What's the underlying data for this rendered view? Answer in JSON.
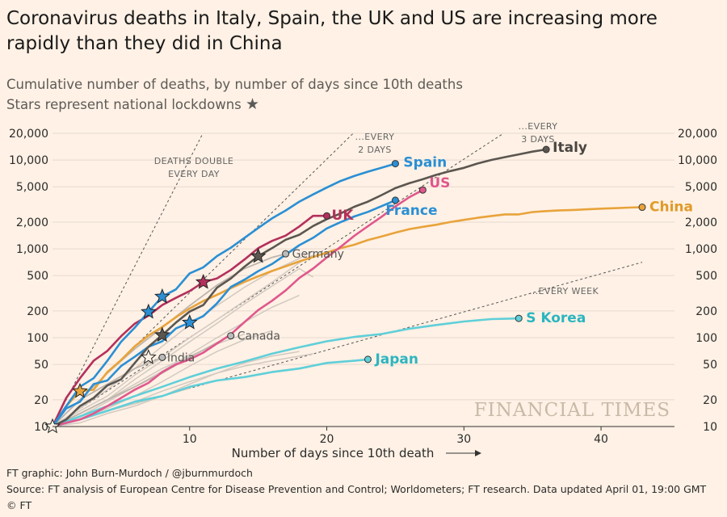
{
  "title": "Coronavirus deaths in Italy, Spain, the UK and US are increasing more rapidly than they did in China",
  "subtitle": "Cumulative number of deaths, by number of days since 10th deaths",
  "subtitle_line2": "Stars represent national lockdowns",
  "watermark": "FINANCIAL TIMES",
  "footer": {
    "credit": "FT graphic: John Burn-Murdoch / @jburnmurdoch",
    "source": "Source: FT analysis of European Centre for Disease Prevention and Control; Worldometers; FT research. Data updated April 01, 19:00 GMT",
    "copyright": "© FT"
  },
  "chart_data": {
    "type": "line",
    "y_scale": "log",
    "xlim": [
      0,
      43
    ],
    "ylim": [
      10,
      20000
    ],
    "xticks": [
      10,
      20,
      30,
      40
    ],
    "yticks": [
      10,
      20,
      50,
      100,
      200,
      500,
      1000,
      2000,
      5000,
      10000,
      20000
    ],
    "ytick_labels": [
      "10",
      "20",
      "50",
      "100",
      "200",
      "500",
      "1,000",
      "2,000",
      "5,000",
      "10,000",
      "20,000"
    ],
    "xlabel": "Number of days since 10th death",
    "guides": [
      {
        "label": [
          "DEATHS DOUBLE",
          "EVERY DAY"
        ],
        "doubling_days": 1
      },
      {
        "label": [
          "...EVERY",
          "2 DAYS"
        ],
        "doubling_days": 2
      },
      {
        "label": [
          "...EVERY",
          "3 DAYS"
        ],
        "doubling_days": 3
      },
      {
        "label": [
          "...EVERY WEEK"
        ],
        "doubling_days": 7
      }
    ],
    "series": [
      {
        "name": "Spain",
        "color": "#2a8fd4",
        "label_color": "#2a8fd4",
        "x": [
          0,
          1,
          2,
          3,
          4,
          5,
          6,
          7,
          8,
          9,
          10,
          11,
          12,
          13,
          14,
          15,
          16,
          17,
          18,
          19,
          20,
          21,
          22,
          23,
          24,
          25
        ],
        "y": [
          10,
          17,
          28,
          35,
          55,
          90,
          130,
          195,
          290,
          350,
          530,
          620,
          830,
          1030,
          1330,
          1720,
          2200,
          2700,
          3400,
          4100,
          4900,
          5800,
          6600,
          7400,
          8200,
          9100
        ],
        "stars": [
          7,
          8
        ]
      },
      {
        "name": "Italy",
        "color": "#5b5650",
        "label_color": "#4a4642",
        "x": [
          0,
          1,
          2,
          3,
          4,
          5,
          6,
          7,
          8,
          9,
          10,
          11,
          12,
          13,
          14,
          15,
          16,
          17,
          18,
          19,
          20,
          21,
          22,
          23,
          24,
          25,
          26,
          27,
          28,
          29,
          30,
          31,
          32,
          33,
          34,
          35,
          36
        ],
        "y": [
          10,
          12,
          17,
          21,
          29,
          34,
          52,
          79,
          107,
          148,
          197,
          233,
          366,
          463,
          631,
          827,
          1016,
          1266,
          1441,
          1809,
          2158,
          2503,
          2978,
          3405,
          4032,
          4825,
          5476,
          6077,
          6820,
          7503,
          8165,
          9134,
          10023,
          10779,
          11591,
          12428,
          13155
        ],
        "stars": [
          8,
          15
        ]
      },
      {
        "name": "UK",
        "color": "#b4305c",
        "label_color": "#b4305c",
        "x": [
          0,
          1,
          2,
          3,
          4,
          5,
          6,
          7,
          8,
          9,
          10,
          11,
          12,
          13,
          14,
          15,
          16,
          17,
          18,
          19,
          20
        ],
        "y": [
          10,
          21,
          35,
          55,
          71,
          104,
          144,
          177,
          233,
          281,
          335,
          422,
          465,
          578,
          759,
          1019,
          1228,
          1408,
          1789,
          2352,
          2352
        ],
        "stars": [
          11
        ]
      },
      {
        "name": "US",
        "color": "#e0578c",
        "label_color": "#e0578c",
        "x": [
          0,
          1,
          2,
          3,
          4,
          5,
          6,
          7,
          8,
          9,
          10,
          11,
          12,
          13,
          14,
          15,
          16,
          17,
          18,
          19,
          20,
          21,
          22,
          23,
          24,
          25,
          26,
          27
        ],
        "y": [
          10,
          11,
          12,
          14,
          17,
          21,
          26,
          31,
          41,
          50,
          57,
          68,
          86,
          109,
          150,
          205,
          260,
          340,
          470,
          600,
          800,
          1050,
          1400,
          1800,
          2300,
          3000,
          3800,
          4600
        ],
        "stars": []
      },
      {
        "name": "France",
        "color": "#2a8fd4",
        "label_color": "#2a8fd4",
        "x": [
          0,
          1,
          2,
          3,
          4,
          5,
          6,
          7,
          8,
          9,
          10,
          11,
          12,
          13,
          14,
          15,
          16,
          17,
          18,
          19,
          20,
          21,
          22,
          23,
          24,
          25
        ],
        "y": [
          10,
          16,
          19,
          30,
          33,
          48,
          61,
          79,
          91,
          127,
          148,
          175,
          244,
          372,
          450,
          562,
          674,
          860,
          1100,
          1331,
          1696,
          1995,
          2314,
          2606,
          3024,
          3523
        ],
        "stars": [
          10
        ]
      },
      {
        "name": "China",
        "color": "#e8a33b",
        "label_color": "#e19a28",
        "x": [
          0,
          1,
          2,
          3,
          4,
          5,
          6,
          7,
          8,
          9,
          10,
          11,
          12,
          13,
          14,
          15,
          16,
          17,
          18,
          19,
          20,
          21,
          22,
          23,
          24,
          25,
          26,
          27,
          28,
          29,
          30,
          31,
          32,
          33,
          34,
          35,
          36,
          37,
          38,
          39,
          40,
          41,
          42,
          43
        ],
        "y": [
          10,
          17,
          25,
          26,
          41,
          56,
          80,
          106,
          132,
          170,
          213,
          259,
          304,
          361,
          425,
          490,
          563,
          636,
          722,
          811,
          908,
          1016,
          1113,
          1259,
          1380,
          1523,
          1665,
          1770,
          1868,
          2004,
          2118,
          2236,
          2345,
          2442,
          2445,
          2595,
          2665,
          2715,
          2744,
          2788,
          2835,
          2870,
          2912,
          2943
        ],
        "stars": [
          2
        ]
      },
      {
        "name": "S Korea",
        "color": "#5fcfd9",
        "label_color": "#2cb5c0",
        "x": [
          0,
          2,
          4,
          6,
          8,
          10,
          12,
          14,
          16,
          18,
          20,
          22,
          24,
          26,
          28,
          30,
          32,
          34
        ],
        "y": [
          10,
          13,
          17,
          22,
          28,
          36,
          45,
          54,
          66,
          78,
          91,
          102,
          110,
          126,
          139,
          152,
          162,
          165
        ],
        "stars": []
      },
      {
        "name": "Japan",
        "color": "#5fcfd9",
        "label_color": "#2cb5c0",
        "x": [
          0,
          2,
          4,
          6,
          8,
          10,
          12,
          14,
          16,
          18,
          20,
          22,
          23
        ],
        "y": [
          10,
          12,
          15,
          19,
          22,
          28,
          33,
          36,
          41,
          45,
          52,
          55,
          57
        ],
        "stars": []
      },
      {
        "name": "Germany",
        "color": "#bdb5ad",
        "label_color": "#555",
        "x": [
          0,
          2,
          4,
          6,
          8,
          10,
          12,
          14,
          16,
          17
        ],
        "y": [
          10,
          20,
          40,
          75,
          130,
          230,
          390,
          600,
          800,
          880
        ],
        "stars": []
      },
      {
        "name": "Canada",
        "color": "#bdb5ad",
        "label_color": "#555",
        "x": [
          0,
          2,
          4,
          6,
          8,
          10,
          12,
          13
        ],
        "y": [
          10,
          14,
          20,
          28,
          40,
          60,
          88,
          105
        ],
        "stars": []
      },
      {
        "name": "India",
        "color": "#bdb5ad",
        "label_color": "#555",
        "x": [
          0,
          2,
          4,
          6,
          8
        ],
        "y": [
          10,
          20,
          30,
          45,
          60
        ],
        "stars": [
          7
        ]
      }
    ],
    "background_series": [
      {
        "x": [
          0,
          2,
          4,
          6,
          8,
          10,
          12,
          14,
          16,
          18,
          19
        ],
        "y": [
          10,
          15,
          22,
          38,
          60,
          100,
          160,
          260,
          420,
          700,
          850
        ]
      },
      {
        "x": [
          0,
          2,
          4,
          6,
          8,
          10,
          12,
          14,
          16,
          18,
          19
        ],
        "y": [
          10,
          14,
          20,
          34,
          55,
          90,
          145,
          240,
          380,
          600,
          480
        ]
      },
      {
        "x": [
          0,
          2,
          4,
          6,
          8,
          10,
          12,
          14,
          16,
          18
        ],
        "y": [
          10,
          13,
          19,
          28,
          42,
          65,
          100,
          150,
          220,
          300
        ]
      },
      {
        "x": [
          0,
          2,
          4,
          6,
          8,
          10,
          12,
          14,
          16
        ],
        "y": [
          10,
          12,
          16,
          22,
          32,
          48,
          70,
          95,
          120
        ]
      },
      {
        "x": [
          0,
          2,
          4,
          6,
          8,
          10,
          12,
          14,
          16,
          18
        ],
        "y": [
          10,
          11,
          14,
          17,
          22,
          30,
          40,
          52,
          62,
          70
        ]
      },
      {
        "x": [
          0,
          2,
          4,
          6,
          8,
          10,
          12,
          14,
          16,
          18,
          19
        ],
        "y": [
          10,
          12,
          15,
          19,
          25,
          32,
          40,
          48,
          55,
          62,
          66
        ]
      },
      {
        "x": [
          0,
          2,
          4,
          6,
          8,
          10,
          12,
          14
        ],
        "y": [
          10,
          14,
          20,
          30,
          45,
          62,
          85,
          110
        ]
      },
      {
        "x": [
          0,
          2,
          4,
          6,
          8,
          10
        ],
        "y": [
          10,
          12,
          15,
          18,
          22,
          27
        ]
      },
      {
        "x": [
          0,
          2,
          4,
          6,
          8,
          10,
          12,
          14,
          16,
          18,
          19
        ],
        "y": [
          10,
          16,
          26,
          45,
          80,
          140,
          230,
          370,
          560,
          780,
          950
        ]
      }
    ]
  }
}
